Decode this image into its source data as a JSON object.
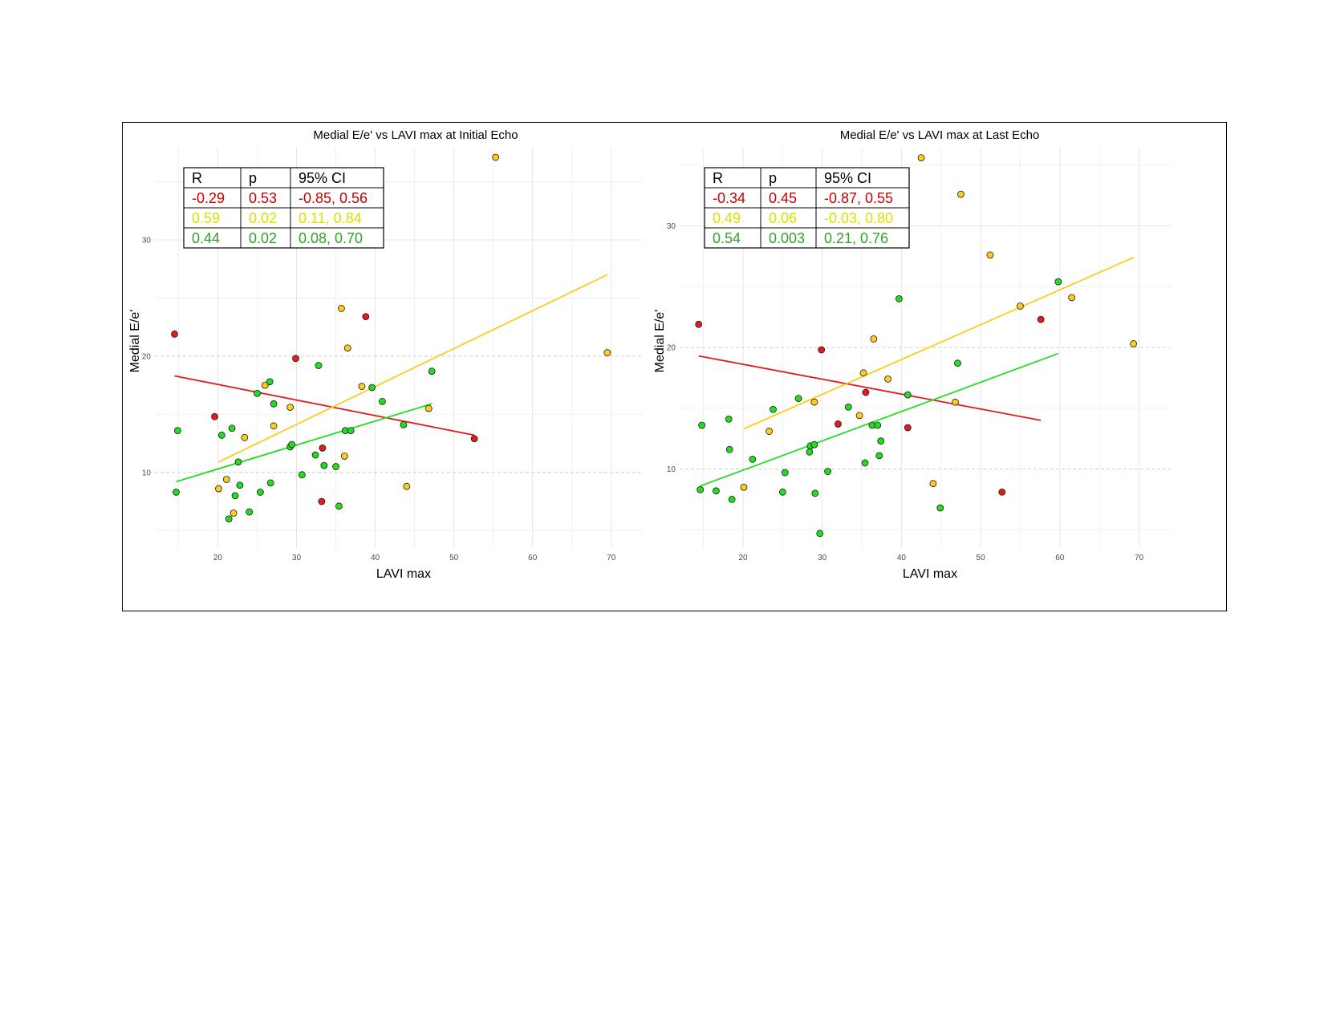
{
  "chart_data": [
    {
      "type": "scatter",
      "title": "Medial E/e' vs LAVI max at Initial Echo",
      "xlabel": "LAVI max",
      "ylabel": "Medial E/e'",
      "xlim": [
        12,
        74
      ],
      "ylim": [
        3.5,
        38
      ],
      "xticks": [
        20,
        30,
        40,
        50,
        60,
        70
      ],
      "yticks": [
        10,
        20,
        30
      ],
      "colors": {
        "red": "#e41a1c",
        "yellow": "#ffcc1a",
        "green": "#22dd22"
      },
      "series": [
        {
          "name": "red",
          "points": [
            [
              14.5,
              21.9
            ],
            [
              19.6,
              14.8
            ],
            [
              29.9,
              19.8
            ],
            [
              33.3,
              12.1
            ],
            [
              33.2,
              7.5
            ],
            [
              38.8,
              23.4
            ],
            [
              52.6,
              12.9
            ]
          ],
          "fit": [
            [
              14.5,
              18.3
            ],
            [
              52.6,
              13.2
            ]
          ]
        },
        {
          "name": "yellow",
          "points": [
            [
              20.1,
              8.6
            ],
            [
              21.1,
              9.4
            ],
            [
              22.0,
              6.5
            ],
            [
              23.4,
              13.0
            ],
            [
              26.0,
              17.5
            ],
            [
              27.1,
              14.0
            ],
            [
              29.2,
              15.6
            ],
            [
              35.7,
              24.1
            ],
            [
              36.1,
              11.4
            ],
            [
              36.5,
              20.7
            ],
            [
              38.3,
              17.4
            ],
            [
              44.0,
              8.8
            ],
            [
              46.8,
              15.5
            ],
            [
              55.3,
              37.1
            ],
            [
              69.5,
              20.3
            ]
          ],
          "fit": [
            [
              20.1,
              10.9
            ],
            [
              69.5,
              27.0
            ]
          ]
        },
        {
          "name": "green",
          "points": [
            [
              14.7,
              8.3
            ],
            [
              14.9,
              13.6
            ],
            [
              20.5,
              13.2
            ],
            [
              21.4,
              6.0
            ],
            [
              21.8,
              13.8
            ],
            [
              22.2,
              8.0
            ],
            [
              22.6,
              10.9
            ],
            [
              22.8,
              8.9
            ],
            [
              24.0,
              6.6
            ],
            [
              25.0,
              16.8
            ],
            [
              25.4,
              8.3
            ],
            [
              26.6,
              17.8
            ],
            [
              26.7,
              9.1
            ],
            [
              27.1,
              15.9
            ],
            [
              29.2,
              12.2
            ],
            [
              29.4,
              12.4
            ],
            [
              30.7,
              9.8
            ],
            [
              32.4,
              11.5
            ],
            [
              32.8,
              19.2
            ],
            [
              33.5,
              10.6
            ],
            [
              35.0,
              10.5
            ],
            [
              35.4,
              7.1
            ],
            [
              36.2,
              13.6
            ],
            [
              36.9,
              13.6
            ],
            [
              39.6,
              17.3
            ],
            [
              40.9,
              16.1
            ],
            [
              43.6,
              14.1
            ],
            [
              47.2,
              18.7
            ]
          ],
          "fit": [
            [
              14.7,
              9.2
            ],
            [
              47.2,
              15.9
            ]
          ]
        }
      ],
      "stats_table": {
        "headers": [
          "R",
          "p",
          "95% CI"
        ],
        "rows": [
          {
            "color": "red",
            "cells": [
              "-0.29",
              "0.53",
              "-0.85, 0.56"
            ]
          },
          {
            "color": "yellow",
            "cells": [
              "0.59",
              "0.02",
              "0.11, 0.84"
            ]
          },
          {
            "color": "green",
            "cells": [
              "0.44",
              "0.02",
              "0.08, 0.70"
            ]
          }
        ]
      }
    },
    {
      "type": "scatter",
      "title": "Medial E/e' vs LAVI max at Last Echo",
      "xlabel": "LAVI max",
      "ylabel": "Medial E/e'",
      "xlim": [
        12,
        74
      ],
      "ylim": [
        3.5,
        36.5
      ],
      "xticks": [
        20,
        30,
        40,
        50,
        60,
        70
      ],
      "yticks": [
        10,
        20,
        30
      ],
      "colors": {
        "red": "#e41a1c",
        "yellow": "#ffcc1a",
        "green": "#22dd22"
      },
      "series": [
        {
          "name": "red",
          "points": [
            [
              14.4,
              21.9
            ],
            [
              29.9,
              19.8
            ],
            [
              32.0,
              13.7
            ],
            [
              35.5,
              16.3
            ],
            [
              40.8,
              13.4
            ],
            [
              52.7,
              8.1
            ],
            [
              57.6,
              22.3
            ]
          ],
          "fit": [
            [
              14.4,
              19.3
            ],
            [
              57.6,
              14.0
            ]
          ]
        },
        {
          "name": "yellow",
          "points": [
            [
              20.1,
              8.5
            ],
            [
              23.3,
              13.1
            ],
            [
              29.0,
              15.5
            ],
            [
              34.7,
              14.4
            ],
            [
              35.2,
              17.9
            ],
            [
              36.5,
              20.7
            ],
            [
              38.3,
              17.4
            ],
            [
              42.5,
              35.6
            ],
            [
              44.0,
              8.8
            ],
            [
              46.8,
              15.5
            ],
            [
              47.5,
              32.6
            ],
            [
              51.2,
              27.6
            ],
            [
              55.0,
              23.4
            ],
            [
              61.5,
              24.1
            ],
            [
              69.3,
              20.3
            ]
          ],
          "fit": [
            [
              20.1,
              13.3
            ],
            [
              69.3,
              27.4
            ]
          ]
        },
        {
          "name": "green",
          "points": [
            [
              14.6,
              8.3
            ],
            [
              14.8,
              13.6
            ],
            [
              16.6,
              8.2
            ],
            [
              18.2,
              14.1
            ],
            [
              18.3,
              11.6
            ],
            [
              18.6,
              7.5
            ],
            [
              21.2,
              10.8
            ],
            [
              23.8,
              14.9
            ],
            [
              25.3,
              9.7
            ],
            [
              25.0,
              8.1
            ],
            [
              27.0,
              15.8
            ],
            [
              28.4,
              11.4
            ],
            [
              28.5,
              11.9
            ],
            [
              29.0,
              12.0
            ],
            [
              29.1,
              8.0
            ],
            [
              29.7,
              4.7
            ],
            [
              30.7,
              9.8
            ],
            [
              33.3,
              15.1
            ],
            [
              35.4,
              10.5
            ],
            [
              36.3,
              13.6
            ],
            [
              37.0,
              13.6
            ],
            [
              37.2,
              11.1
            ],
            [
              37.4,
              12.3
            ],
            [
              39.7,
              24.0
            ],
            [
              40.8,
              16.1
            ],
            [
              44.9,
              6.8
            ],
            [
              47.1,
              18.7
            ],
            [
              59.8,
              25.4
            ]
          ],
          "fit": [
            [
              14.6,
              8.6
            ],
            [
              59.8,
              19.5
            ]
          ]
        }
      ],
      "stats_table": {
        "headers": [
          "R",
          "p",
          "95% CI"
        ],
        "rows": [
          {
            "color": "red",
            "cells": [
              "-0.34",
              "0.45",
              "-0.87, 0.55"
            ]
          },
          {
            "color": "yellow",
            "cells": [
              "0.49",
              "0.06",
              "-0.03, 0.80"
            ]
          },
          {
            "color": "green",
            "cells": [
              "0.54",
              "0.003",
              "0.21, 0.76"
            ]
          }
        ]
      }
    }
  ]
}
